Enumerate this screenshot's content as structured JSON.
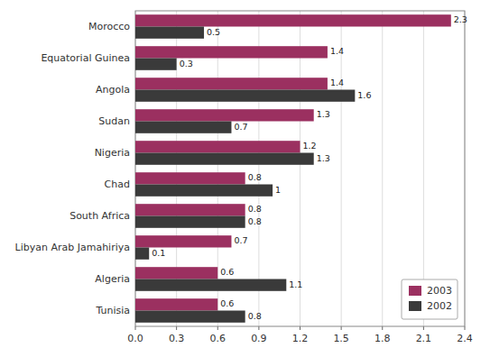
{
  "chart_data": {
    "type": "bar",
    "orientation": "horizontal",
    "categories": [
      "Morocco",
      "Equatorial Guinea",
      "Angola",
      "Sudan",
      "Nigeria",
      "Chad",
      "South Africa",
      "Libyan Arab Jamahiriya",
      "Algeria",
      "Tunisia"
    ],
    "series": [
      {
        "name": "2003",
        "color": "#9b3060",
        "values": [
          2.3,
          1.4,
          1.4,
          1.3,
          1.2,
          0.8,
          0.8,
          0.7,
          0.6,
          0.6
        ]
      },
      {
        "name": "2002",
        "color": "#3a3a3a",
        "values": [
          0.5,
          0.3,
          1.6,
          0.7,
          1.3,
          1.0,
          0.8,
          0.1,
          1.1,
          0.8
        ]
      }
    ],
    "xlim": [
      0.0,
      2.4
    ],
    "xticks": [
      {
        "value": 0.0,
        "label": "0.0"
      },
      0.3,
      0.6,
      0.9,
      1.2,
      1.5,
      1.8,
      2.1,
      2.4
    ],
    "grid": true,
    "data_labels": true,
    "legend": "lower right"
  }
}
